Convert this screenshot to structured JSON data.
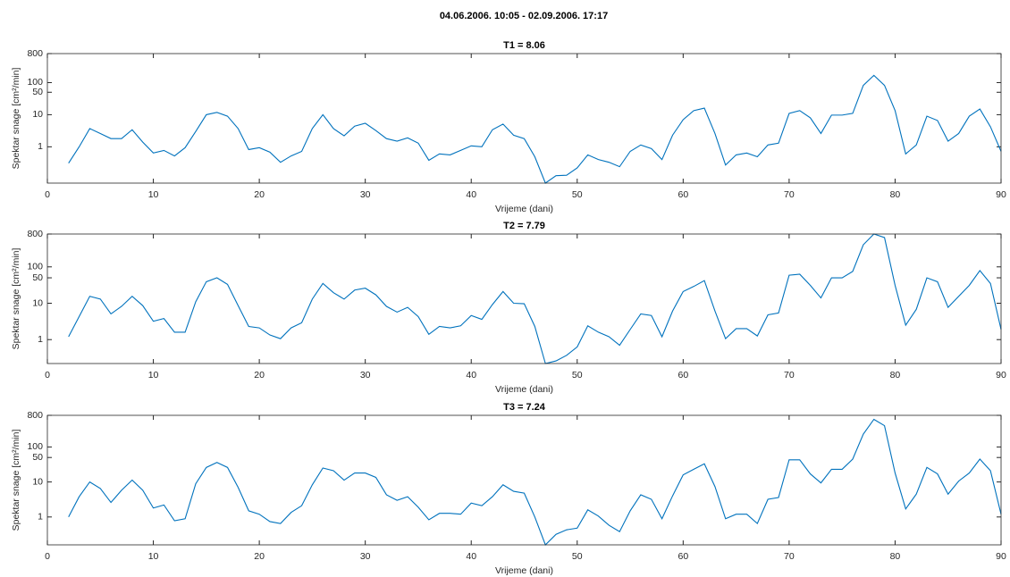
{
  "title": "04.06.2006. 10:05 - 02.09.2006. 17:17",
  "chart_data": [
    {
      "type": "line",
      "title": "T1 = 8.06",
      "xlabel": "Vrijeme (dani)",
      "ylabel": "Spektar snage [cm²/min]",
      "yscale": "log",
      "color": "#0072bd",
      "x": [
        2,
        3,
        4,
        5,
        6,
        7,
        8,
        9,
        10,
        11,
        12,
        13,
        14,
        15,
        16,
        17,
        18,
        19,
        20,
        21,
        22,
        23,
        24,
        25,
        26,
        27,
        28,
        29,
        30,
        31,
        32,
        33,
        34,
        35,
        36,
        37,
        38,
        39,
        40,
        41,
        42,
        43,
        44,
        45,
        46,
        47,
        48,
        49,
        50,
        51,
        52,
        53,
        54,
        55,
        56,
        57,
        58,
        59,
        60,
        61,
        62,
        63,
        64,
        65,
        66,
        67,
        68,
        69,
        70,
        71,
        72,
        73,
        74,
        75,
        76,
        77,
        78,
        79,
        80,
        81,
        82,
        83,
        84,
        85,
        86,
        87,
        88,
        89,
        90
      ],
      "values": [
        0.31,
        1.0,
        3.7,
        2.6,
        1.8,
        1.8,
        3.4,
        1.4,
        0.64,
        0.77,
        0.52,
        0.94,
        3.0,
        10,
        11.8,
        9,
        3.7,
        0.82,
        0.94,
        0.68,
        0.33,
        0.52,
        0.72,
        3.7,
        10,
        3.7,
        2.2,
        4.4,
        5.4,
        3.2,
        1.8,
        1.5,
        1.9,
        1.3,
        0.38,
        0.6,
        0.56,
        0.77,
        1.07,
        1.0,
        3.4,
        5.1,
        2.3,
        1.8,
        0.49,
        0.074,
        0.126,
        0.13,
        0.22,
        0.56,
        0.4,
        0.33,
        0.24,
        0.72,
        1.14,
        0.88,
        0.4,
        2.3,
        7,
        13.4,
        16,
        2.6,
        0.27,
        0.56,
        0.64,
        0.49,
        1.14,
        1.3,
        11,
        13.4,
        8,
        2.6,
        9.7,
        9.7,
        11,
        82,
        168,
        82,
        13.4,
        0.6,
        1.14,
        9,
        6.6,
        1.5,
        2.6,
        9,
        15,
        4.2,
        0.72
      ],
      "xlim": [
        0,
        90
      ],
      "xticks": [
        0,
        10,
        20,
        30,
        40,
        50,
        60,
        70,
        80,
        90
      ],
      "ylim": [
        0.074,
        800
      ],
      "yticks": [
        1,
        10,
        50,
        100,
        800
      ]
    },
    {
      "type": "line",
      "title": "T2 = 7.79",
      "xlabel": "Vrijeme (dani)",
      "ylabel": "Spektar snage [cm²/min]",
      "yscale": "log",
      "color": "#0072bd",
      "x": [
        2,
        3,
        4,
        5,
        6,
        7,
        8,
        9,
        10,
        11,
        12,
        13,
        14,
        15,
        16,
        17,
        18,
        19,
        20,
        21,
        22,
        23,
        24,
        25,
        26,
        27,
        28,
        29,
        30,
        31,
        32,
        33,
        34,
        35,
        36,
        37,
        38,
        39,
        40,
        41,
        42,
        43,
        44,
        45,
        46,
        47,
        48,
        49,
        50,
        51,
        52,
        53,
        54,
        55,
        56,
        57,
        58,
        59,
        60,
        61,
        62,
        63,
        64,
        65,
        66,
        67,
        68,
        69,
        70,
        71,
        72,
        73,
        74,
        75,
        76,
        77,
        78,
        79,
        80,
        81,
        82,
        83,
        84,
        85,
        86,
        87,
        88,
        89,
        90
      ],
      "values": [
        1.2,
        4.3,
        15.5,
        13,
        5.1,
        8.2,
        15.5,
        8.6,
        3.2,
        3.8,
        1.6,
        1.6,
        11,
        39,
        50,
        33,
        8.6,
        2.3,
        2.1,
        1.34,
        1.06,
        2.1,
        2.9,
        13,
        35,
        19.5,
        13,
        23,
        26,
        17,
        8.2,
        5.7,
        7.7,
        4.3,
        1.4,
        2.3,
        2.1,
        2.4,
        4.6,
        3.6,
        9.2,
        21,
        10,
        9.7,
        2.3,
        0.22,
        0.26,
        0.37,
        0.63,
        2.4,
        1.6,
        1.2,
        0.7,
        1.9,
        5.1,
        4.6,
        1.2,
        6.1,
        21,
        29,
        42,
        6.1,
        1.06,
        2.0,
        2.0,
        1.26,
        4.8,
        5.4,
        59,
        63,
        31,
        14,
        50,
        50,
        75,
        405,
        800,
        640,
        31,
        2.5,
        6.8,
        50,
        39,
        7.7,
        15.5,
        31,
        79,
        35,
        1.9
      ],
      "xlim": [
        0,
        90
      ],
      "xticks": [
        0,
        10,
        20,
        30,
        40,
        50,
        60,
        70,
        80,
        90
      ],
      "ylim": [
        0.22,
        800
      ],
      "yticks": [
        1,
        10,
        50,
        100,
        800
      ]
    },
    {
      "type": "line",
      "title": "T3 = 7.24",
      "xlabel": "Vrijeme (dani)",
      "ylabel": "Spektar snage [cm²/min]",
      "yscale": "log",
      "color": "#0072bd",
      "x": [
        2,
        3,
        4,
        5,
        6,
        7,
        8,
        9,
        10,
        11,
        12,
        13,
        14,
        15,
        16,
        17,
        18,
        19,
        20,
        21,
        22,
        23,
        24,
        25,
        26,
        27,
        28,
        29,
        30,
        31,
        32,
        33,
        34,
        35,
        36,
        37,
        38,
        39,
        40,
        41,
        42,
        43,
        44,
        45,
        46,
        47,
        48,
        49,
        50,
        51,
        52,
        53,
        54,
        55,
        56,
        57,
        58,
        59,
        60,
        61,
        62,
        63,
        64,
        65,
        66,
        67,
        68,
        69,
        70,
        71,
        72,
        73,
        74,
        75,
        76,
        77,
        78,
        79,
        80,
        81,
        82,
        83,
        84,
        85,
        86,
        87,
        88,
        89,
        90
      ],
      "values": [
        1.0,
        3.8,
        10,
        6.5,
        2.6,
        5.8,
        11.3,
        5.8,
        1.8,
        2.2,
        0.78,
        0.89,
        8.9,
        26,
        36,
        26,
        7,
        1.5,
        1.2,
        0.74,
        0.65,
        1.35,
        2.1,
        8.3,
        25,
        21,
        11.3,
        18,
        18,
        13.5,
        4.3,
        3,
        3.8,
        1.9,
        0.83,
        1.27,
        1.27,
        1.2,
        2.5,
        2.1,
        3.8,
        8.3,
        5.4,
        4.8,
        1.0,
        0.16,
        0.32,
        0.43,
        0.48,
        1.6,
        1.06,
        0.58,
        0.38,
        1.5,
        4.3,
        3.2,
        0.89,
        4.0,
        16,
        23,
        33,
        7.4,
        0.89,
        1.2,
        1.2,
        0.65,
        3.2,
        3.6,
        43,
        43,
        17,
        9.4,
        23,
        23,
        45,
        233,
        615,
        405,
        18,
        1.7,
        4.5,
        26,
        17,
        4.5,
        10.6,
        18,
        45,
        21,
        1.2
      ],
      "xlim": [
        0,
        90
      ],
      "xticks": [
        0,
        10,
        20,
        30,
        40,
        50,
        60,
        70,
        80,
        90
      ],
      "ylim": [
        0.16,
        800
      ],
      "yticks": [
        1,
        10,
        50,
        100,
        800
      ]
    }
  ]
}
